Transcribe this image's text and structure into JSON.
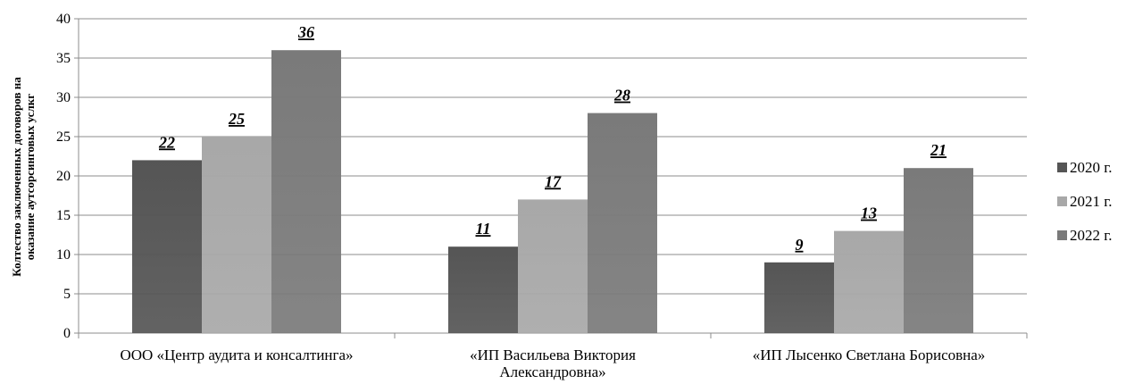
{
  "chart_data": {
    "type": "bar",
    "categories": [
      "ООО «Центр аудита и консалтинга»",
      "«ИП Васильева Виктория Александровна»",
      "«ИП Лысенко Светлана Борисовна»"
    ],
    "category_lines": [
      [
        "ООО «Центр аудита и консалтинга»"
      ],
      [
        "«ИП Васильева Виктория",
        "Александровна»"
      ],
      [
        "«ИП Лысенко Светлана Борисовна»"
      ]
    ],
    "series": [
      {
        "name": "2020 г.",
        "values": [
          22,
          11,
          9
        ],
        "color": "#555555"
      },
      {
        "name": "2021 г.",
        "values": [
          25,
          17,
          13
        ],
        "color": "#a8a8a8"
      },
      {
        "name": "2022 г.",
        "values": [
          36,
          28,
          21
        ],
        "color": "#7a7a7a"
      }
    ],
    "ylabel_lines": [
      "Колтество заключенных договоров на",
      "оказание аутсорсинговых услкг"
    ],
    "ylim": [
      0,
      40
    ],
    "yticks": [
      0,
      5,
      10,
      15,
      20,
      25,
      30,
      35,
      40
    ],
    "grid": true,
    "legend": "right"
  }
}
